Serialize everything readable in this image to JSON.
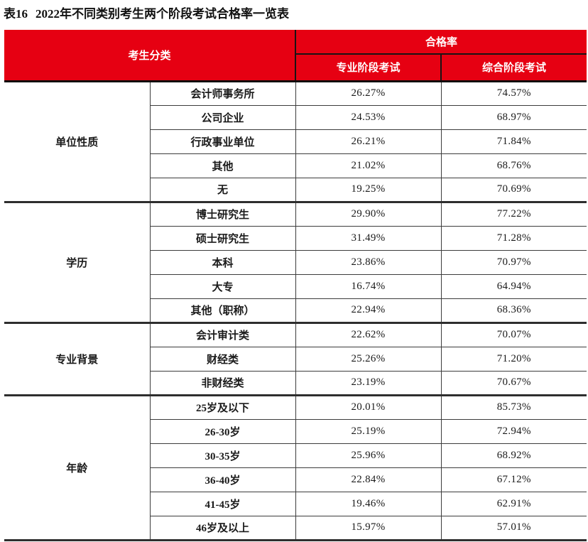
{
  "title": {
    "prefix": "表16",
    "text": "2022年不同类别考生两个阶段考试合格率一览表"
  },
  "colors": {
    "header_red": "#e60012",
    "header_text": "#ffffff",
    "body_text": "#1a1a1a",
    "border_dark": "#2e2e2e"
  },
  "table": {
    "header": {
      "candidate_category": "考生分类",
      "pass_rate": "合格率",
      "professional_stage": "专业阶段考试",
      "comprehensive_stage": "综合阶段考试"
    },
    "groups": [
      {
        "label": "单位性质",
        "rows": [
          {
            "category": "会计师事务所",
            "professional": "26.27%",
            "comprehensive": "74.57%"
          },
          {
            "category": "公司企业",
            "professional": "24.53%",
            "comprehensive": "68.97%"
          },
          {
            "category": "行政事业单位",
            "professional": "26.21%",
            "comprehensive": "71.84%"
          },
          {
            "category": "其他",
            "professional": "21.02%",
            "comprehensive": "68.76%"
          },
          {
            "category": "无",
            "professional": "19.25%",
            "comprehensive": "70.69%"
          }
        ]
      },
      {
        "label": "学历",
        "rows": [
          {
            "category": "博士研究生",
            "professional": "29.90%",
            "comprehensive": "77.22%"
          },
          {
            "category": "硕士研究生",
            "professional": "31.49%",
            "comprehensive": "71.28%"
          },
          {
            "category": "本科",
            "professional": "23.86%",
            "comprehensive": "70.97%"
          },
          {
            "category": "大专",
            "professional": "16.74%",
            "comprehensive": "64.94%"
          },
          {
            "category": "其他（职称）",
            "professional": "22.94%",
            "comprehensive": "68.36%"
          }
        ]
      },
      {
        "label": "专业背景",
        "rows": [
          {
            "category": "会计审计类",
            "professional": "22.62%",
            "comprehensive": "70.07%"
          },
          {
            "category": "财经类",
            "professional": "25.26%",
            "comprehensive": "71.20%"
          },
          {
            "category": "非财经类",
            "professional": "23.19%",
            "comprehensive": "70.67%"
          }
        ]
      },
      {
        "label": "年龄",
        "rows": [
          {
            "category": "25岁及以下",
            "professional": "20.01%",
            "comprehensive": "85.73%"
          },
          {
            "category": "26-30岁",
            "professional": "25.19%",
            "comprehensive": "72.94%"
          },
          {
            "category": "30-35岁",
            "professional": "25.96%",
            "comprehensive": "68.92%"
          },
          {
            "category": "36-40岁",
            "professional": "22.84%",
            "comprehensive": "67.12%"
          },
          {
            "category": "41-45岁",
            "professional": "19.46%",
            "comprehensive": "62.91%"
          },
          {
            "category": "46岁及以上",
            "professional": "15.97%",
            "comprehensive": "57.01%"
          }
        ]
      }
    ]
  }
}
